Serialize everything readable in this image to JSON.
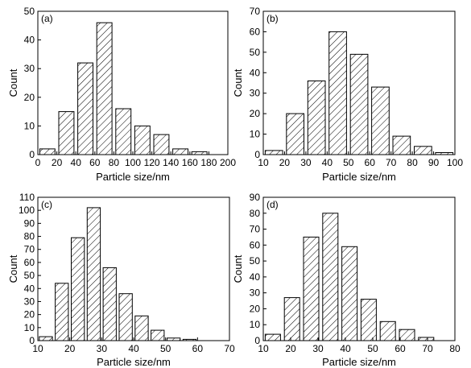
{
  "chart_data": [
    {
      "type": "bar",
      "panel_label": "(a)",
      "xlabel": "Particle size/nm",
      "ylabel": "Count",
      "xlim": [
        0,
        200
      ],
      "ylim": [
        0,
        50
      ],
      "xticks": [
        0,
        20,
        40,
        60,
        80,
        100,
        120,
        140,
        160,
        180,
        200
      ],
      "yticks": [
        0,
        10,
        20,
        30,
        40,
        50
      ],
      "bin_width": 20,
      "bar_width": 16,
      "x": [
        10,
        30,
        50,
        70,
        90,
        110,
        130,
        150,
        170
      ],
      "values": [
        2,
        15,
        32,
        46,
        16,
        10,
        7,
        2,
        1
      ],
      "grid": false,
      "legend": "none"
    },
    {
      "type": "bar",
      "panel_label": "(b)",
      "xlabel": "Particle size/nm",
      "ylabel": "Count",
      "xlim": [
        10,
        100
      ],
      "ylim": [
        0,
        70
      ],
      "xticks": [
        10,
        20,
        30,
        40,
        50,
        60,
        70,
        80,
        90,
        100
      ],
      "yticks": [
        0,
        10,
        20,
        30,
        40,
        50,
        60,
        70
      ],
      "bin_width": 10,
      "bar_width": 8.2,
      "x": [
        15,
        25,
        35,
        45,
        55,
        65,
        75,
        85,
        95
      ],
      "values": [
        2,
        20,
        36,
        60,
        49,
        33,
        9,
        4,
        1
      ],
      "grid": false,
      "legend": "none"
    },
    {
      "type": "bar",
      "panel_label": "(c)",
      "xlabel": "Particle size/nm",
      "ylabel": "Count",
      "xlim": [
        10,
        70
      ],
      "ylim": [
        0,
        110
      ],
      "xticks": [
        10,
        20,
        30,
        40,
        50,
        60,
        70
      ],
      "yticks": [
        0,
        10,
        20,
        30,
        40,
        50,
        60,
        70,
        80,
        90,
        100,
        110
      ],
      "bin_width": 5,
      "bar_width": 4.1,
      "x": [
        12.5,
        17.5,
        22.5,
        27.5,
        32.5,
        37.5,
        42.5,
        47.5,
        52.5,
        57.5,
        62.5
      ],
      "values": [
        3,
        44,
        79,
        102,
        56,
        36,
        19,
        8,
        2,
        1,
        0
      ],
      "grid": false,
      "legend": "none"
    },
    {
      "type": "bar",
      "panel_label": "(d)",
      "xlabel": "Particle size/nm",
      "ylabel": "Count",
      "xlim": [
        10,
        80
      ],
      "ylim": [
        0,
        90
      ],
      "xticks": [
        10,
        20,
        30,
        40,
        50,
        60,
        70,
        80
      ],
      "yticks": [
        0,
        10,
        20,
        30,
        40,
        50,
        60,
        70,
        80,
        90
      ],
      "bin_width": 7,
      "bar_width": 5.6,
      "x": [
        13.5,
        20.5,
        27.5,
        34.5,
        41.5,
        48.5,
        55.5,
        62.5,
        69.5
      ],
      "values": [
        4,
        27,
        65,
        80,
        59,
        26,
        12,
        7,
        2
      ],
      "grid": false,
      "legend": "none"
    }
  ]
}
